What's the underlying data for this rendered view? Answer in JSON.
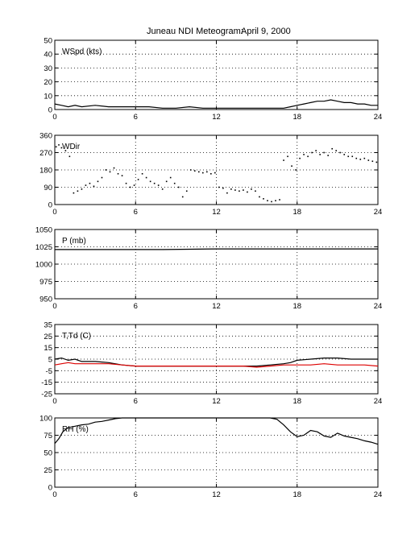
{
  "figure": {
    "title": "Juneau NDI Meteogram:",
    "date": "April  9, 2000"
  },
  "chart_data": [
    {
      "type": "line",
      "label": "WSpd (kts)",
      "xlim": [
        0,
        24
      ],
      "ylim": [
        0,
        50
      ],
      "xticks": [
        0,
        6,
        12,
        18,
        24
      ],
      "yticks": [
        0,
        10,
        20,
        30,
        40,
        50
      ],
      "grid": true,
      "series": [
        {
          "color": "#000000",
          "style": "line",
          "x": [
            0,
            0.5,
            1,
            1.5,
            2,
            3,
            4,
            5,
            6,
            7,
            8,
            9,
            10,
            11,
            12,
            13,
            14,
            15,
            16,
            17,
            17.5,
            18,
            18.5,
            19,
            19.5,
            20,
            20.5,
            21,
            21.5,
            22,
            22.5,
            23,
            23.5,
            24
          ],
          "y": [
            4,
            3,
            2,
            3,
            2,
            3,
            2,
            2,
            2,
            2,
            1,
            1,
            2,
            1,
            1,
            1,
            1,
            1,
            1,
            1,
            2,
            3,
            4,
            5,
            6,
            6,
            7,
            6,
            5,
            5,
            4,
            4,
            3,
            3
          ]
        }
      ]
    },
    {
      "type": "scatter",
      "label": "WDir",
      "xlim": [
        0,
        24
      ],
      "ylim": [
        0,
        360
      ],
      "xticks": [
        0,
        6,
        12,
        18,
        24
      ],
      "yticks": [
        0,
        90,
        180,
        270,
        360
      ],
      "grid": true,
      "series": [
        {
          "color": "#000000",
          "style": "points",
          "x": [
            0.1,
            0.3,
            0.5,
            0.8,
            1.1,
            1.4,
            1.7,
            2.0,
            2.3,
            2.6,
            2.9,
            3.2,
            3.5,
            3.8,
            4.1,
            4.4,
            4.7,
            5.0,
            5.3,
            5.6,
            5.9,
            6.2,
            6.5,
            6.8,
            7.1,
            7.4,
            7.7,
            8.0,
            8.3,
            8.6,
            8.9,
            9.2,
            9.5,
            9.8,
            10.1,
            10.4,
            10.7,
            11.0,
            11.3,
            11.6,
            11.9,
            12.2,
            12.5,
            12.8,
            13.1,
            13.4,
            13.7,
            14.0,
            14.3,
            14.6,
            14.9,
            15.2,
            15.5,
            15.8,
            16.1,
            16.4,
            16.7,
            17.0,
            17.3,
            17.6,
            17.9,
            18.2,
            18.5,
            18.8,
            19.1,
            19.4,
            19.7,
            20.0,
            20.3,
            20.6,
            20.9,
            21.2,
            21.5,
            21.8,
            22.1,
            22.4,
            22.7,
            23.0,
            23.3,
            23.6,
            23.9
          ],
          "y": [
            300,
            310,
            295,
            280,
            250,
            60,
            70,
            80,
            100,
            110,
            95,
            120,
            140,
            180,
            170,
            190,
            160,
            150,
            110,
            90,
            100,
            130,
            160,
            140,
            120,
            110,
            100,
            80,
            120,
            140,
            110,
            90,
            40,
            70,
            180,
            175,
            170,
            165,
            170,
            160,
            165,
            90,
            85,
            60,
            80,
            75,
            70,
            75,
            65,
            80,
            70,
            40,
            30,
            20,
            15,
            20,
            25,
            230,
            250,
            200,
            180,
            240,
            260,
            250,
            270,
            280,
            260,
            270,
            255,
            290,
            280,
            270,
            260,
            250,
            250,
            240,
            235,
            240,
            230,
            225,
            220
          ]
        }
      ]
    },
    {
      "type": "line",
      "label": "P (mb)",
      "xlim": [
        0,
        24
      ],
      "ylim": [
        950,
        1050
      ],
      "xticks": [
        0,
        6,
        12,
        18,
        24
      ],
      "yticks": [
        950,
        975,
        1000,
        1025,
        1050
      ],
      "grid": true,
      "series": [
        {
          "color": "#000000",
          "style": "line",
          "x": [
            0,
            2,
            4,
            6,
            8,
            10,
            12,
            14,
            16,
            18,
            20,
            22,
            24
          ],
          "y": [
            1021,
            1021,
            1021,
            1021,
            1021,
            1021.5,
            1022,
            1022,
            1022,
            1022,
            1022,
            1022,
            1022
          ]
        }
      ]
    },
    {
      "type": "line",
      "label": "T,Td (C)",
      "xlim": [
        0,
        24
      ],
      "ylim": [
        -25,
        35
      ],
      "xticks": [
        0,
        6,
        12,
        18,
        24
      ],
      "yticks": [
        -25,
        -15,
        -5,
        5,
        15,
        25,
        35
      ],
      "grid": true,
      "series": [
        {
          "color": "#000000",
          "style": "line",
          "x": [
            0,
            0.5,
            1,
            1.5,
            2,
            3,
            4,
            5,
            6,
            7,
            8,
            9,
            10,
            11,
            12,
            13,
            14,
            15,
            16,
            17,
            17.5,
            18,
            19,
            20,
            21,
            22,
            23,
            24
          ],
          "y": [
            5,
            6,
            4,
            5,
            3,
            3,
            2,
            0,
            -1,
            -1,
            -1,
            -1,
            -1,
            -1,
            -1,
            -1,
            -1,
            -1,
            0,
            1,
            2,
            4,
            5,
            6,
            6,
            5,
            5,
            5
          ]
        },
        {
          "color": "#dd0000",
          "style": "line",
          "x": [
            0,
            0.5,
            1,
            1.5,
            2,
            3,
            4,
            5,
            6,
            7,
            8,
            9,
            10,
            11,
            12,
            13,
            14,
            15,
            16,
            17,
            17.5,
            18,
            19,
            20,
            21,
            22,
            23,
            24
          ],
          "y": [
            0,
            1,
            2,
            1,
            1,
            1,
            1,
            0,
            -1,
            -1,
            -1,
            -1,
            -1,
            -1,
            -1,
            -1,
            -1,
            -2,
            -1,
            0,
            0,
            0,
            0,
            1,
            0,
            0,
            0,
            -1
          ]
        }
      ]
    },
    {
      "type": "line",
      "label": "RH (%)",
      "xlim": [
        0,
        24
      ],
      "ylim": [
        0,
        100
      ],
      "xticks": [
        0,
        6,
        12,
        18,
        24
      ],
      "yticks": [
        0,
        25,
        50,
        75,
        100
      ],
      "grid": true,
      "series": [
        {
          "color": "#000000",
          "style": "line",
          "x": [
            0,
            0.3,
            0.6,
            1,
            1.5,
            2,
            2.5,
            3,
            3.5,
            4,
            4.5,
            5,
            6,
            8,
            10,
            12,
            14,
            16,
            16.5,
            17,
            17.5,
            18,
            18.5,
            19,
            19.5,
            20,
            20.5,
            21,
            21.5,
            22,
            22.5,
            23,
            23.5,
            24
          ],
          "y": [
            63,
            70,
            80,
            86,
            88,
            90,
            91,
            94,
            95,
            97,
            99,
            100,
            100,
            100,
            100,
            100,
            100,
            100,
            98,
            90,
            80,
            73,
            75,
            82,
            80,
            74,
            72,
            78,
            74,
            72,
            70,
            67,
            65,
            62
          ]
        }
      ]
    }
  ]
}
